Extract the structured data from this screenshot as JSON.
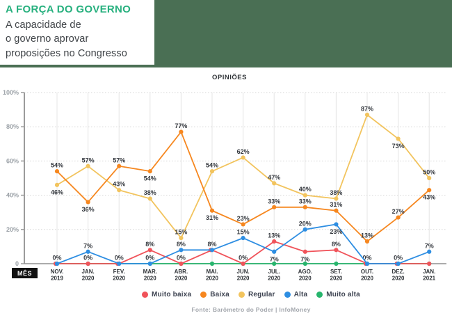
{
  "header": {
    "title": "A FORÇA DO GOVERNO",
    "subtitle": "A capacidade de\no governo aprovar\nproposições no Congresso",
    "accent_color": "#27b07e",
    "band_color": "#4a6f54"
  },
  "chart_data": {
    "type": "line",
    "title": "OPINIÕES",
    "x_axis_title": "MÊS",
    "ylim": [
      0,
      100
    ],
    "y_ticks": [
      {
        "value": 100,
        "label": "100%"
      },
      {
        "value": 80,
        "label": "80%"
      },
      {
        "value": 60,
        "label": "60%"
      },
      {
        "value": 40,
        "label": "40%"
      },
      {
        "value": 20,
        "label": "20%"
      },
      {
        "value": 0,
        "label": "0"
      }
    ],
    "grid": true,
    "legend_position": "bottom",
    "categories": [
      {
        "line1": "NOV.",
        "line2": "2019"
      },
      {
        "line1": "JAN.",
        "line2": "2020"
      },
      {
        "line1": "FEV.",
        "line2": "2020"
      },
      {
        "line1": "MAR.",
        "line2": "2020"
      },
      {
        "line1": "ABR.",
        "line2": "2020"
      },
      {
        "line1": "MAI.",
        "line2": "2020"
      },
      {
        "line1": "JUN.",
        "line2": "2020"
      },
      {
        "line1": "JUL.",
        "line2": "2020"
      },
      {
        "line1": "AGO.",
        "line2": "2020"
      },
      {
        "line1": "SET.",
        "line2": "2020"
      },
      {
        "line1": "OUT.",
        "line2": "2020"
      },
      {
        "line1": "DEZ.",
        "line2": "2020"
      },
      {
        "line1": "JAN.",
        "line2": "2021"
      }
    ],
    "series": [
      {
        "name": "Muito baixa",
        "slug": "muito-baixa",
        "color": "#f0535a",
        "values": [
          0,
          0,
          0,
          8,
          0,
          8,
          0,
          13,
          7,
          8,
          0,
          0,
          0
        ],
        "labels": [
          "0%",
          "0%",
          "0%",
          "8%",
          "0%",
          "",
          "0%",
          "13%",
          "7%",
          "8%",
          "0%",
          "0%",
          ""
        ],
        "label_pos": [
          "a",
          "a",
          "a",
          "a",
          "a",
          "",
          "a",
          "a",
          "b",
          "a",
          "a",
          "a",
          ""
        ]
      },
      {
        "name": "Baixa",
        "slug": "baixa",
        "color": "#f6871f",
        "values": [
          54,
          36,
          57,
          54,
          77,
          31,
          23,
          33,
          33,
          31,
          13,
          27,
          43
        ],
        "labels": [
          "54%",
          "36%",
          "57%",
          "54%",
          "77%",
          "31%",
          "23%",
          "33%",
          "33%",
          "31%",
          "13%",
          "27%",
          "43%"
        ],
        "label_pos": [
          "a",
          "b",
          "a",
          "b",
          "a",
          "b",
          "a",
          "a",
          "a",
          "a",
          "a",
          "a",
          "b"
        ]
      },
      {
        "name": "Regular",
        "slug": "regular",
        "color": "#f2c45e",
        "values": [
          46,
          57,
          43,
          38,
          15,
          54,
          62,
          47,
          40,
          38,
          87,
          73,
          50
        ],
        "labels": [
          "46%",
          "57%",
          "43%",
          "38%",
          "15%",
          "54%",
          "62%",
          "47%",
          "40%",
          "38%",
          "87%",
          "73%",
          "50%"
        ],
        "label_pos": [
          "b",
          "a",
          "a",
          "a",
          "a",
          "a",
          "a",
          "a",
          "a",
          "a",
          "a",
          "b",
          "a"
        ]
      },
      {
        "name": "Alta",
        "slug": "alta",
        "color": "#2e8ee2",
        "values": [
          0,
          7,
          0,
          0,
          8,
          8,
          15,
          7,
          20,
          23,
          0,
          0,
          7
        ],
        "labels": [
          "",
          "7%",
          "",
          "0%",
          "8%",
          "8%",
          "15%",
          "7%",
          "20%",
          "23%",
          "",
          "",
          "7%"
        ],
        "label_pos": [
          "",
          "a",
          "",
          "a",
          "a",
          "a",
          "a",
          "b",
          "a",
          "b",
          "",
          "",
          "a"
        ]
      },
      {
        "name": "Muito alta",
        "slug": "muito-alta",
        "color": "#27b56d",
        "values": [
          0,
          0,
          0,
          0,
          0,
          0,
          0,
          0,
          0,
          0,
          0,
          0,
          0
        ],
        "labels": [
          "",
          "",
          "",
          "",
          "",
          "",
          "",
          "",
          "",
          "",
          "",
          "",
          ""
        ],
        "label_pos": [
          "",
          "",
          "",
          "",
          "",
          "",
          "",
          "",
          "",
          "",
          "",
          "",
          ""
        ]
      }
    ],
    "draw_order": [
      4,
      2,
      1,
      0,
      3
    ],
    "colors": {
      "grid_vertical": "#e4e4e4",
      "grid_horizontal": "#d6d6d6",
      "baseline": "#8f8f8f",
      "axis": "#9b9b9b",
      "tick_label": "#9aa0a6",
      "point_label": "#33373d",
      "month_label": "#2f3337",
      "mes_badge_bg": "#111111",
      "mes_badge_text": "#ffffff"
    }
  },
  "footer": {
    "source": "Fonte: Barômetro do Poder | InfoMoney"
  }
}
